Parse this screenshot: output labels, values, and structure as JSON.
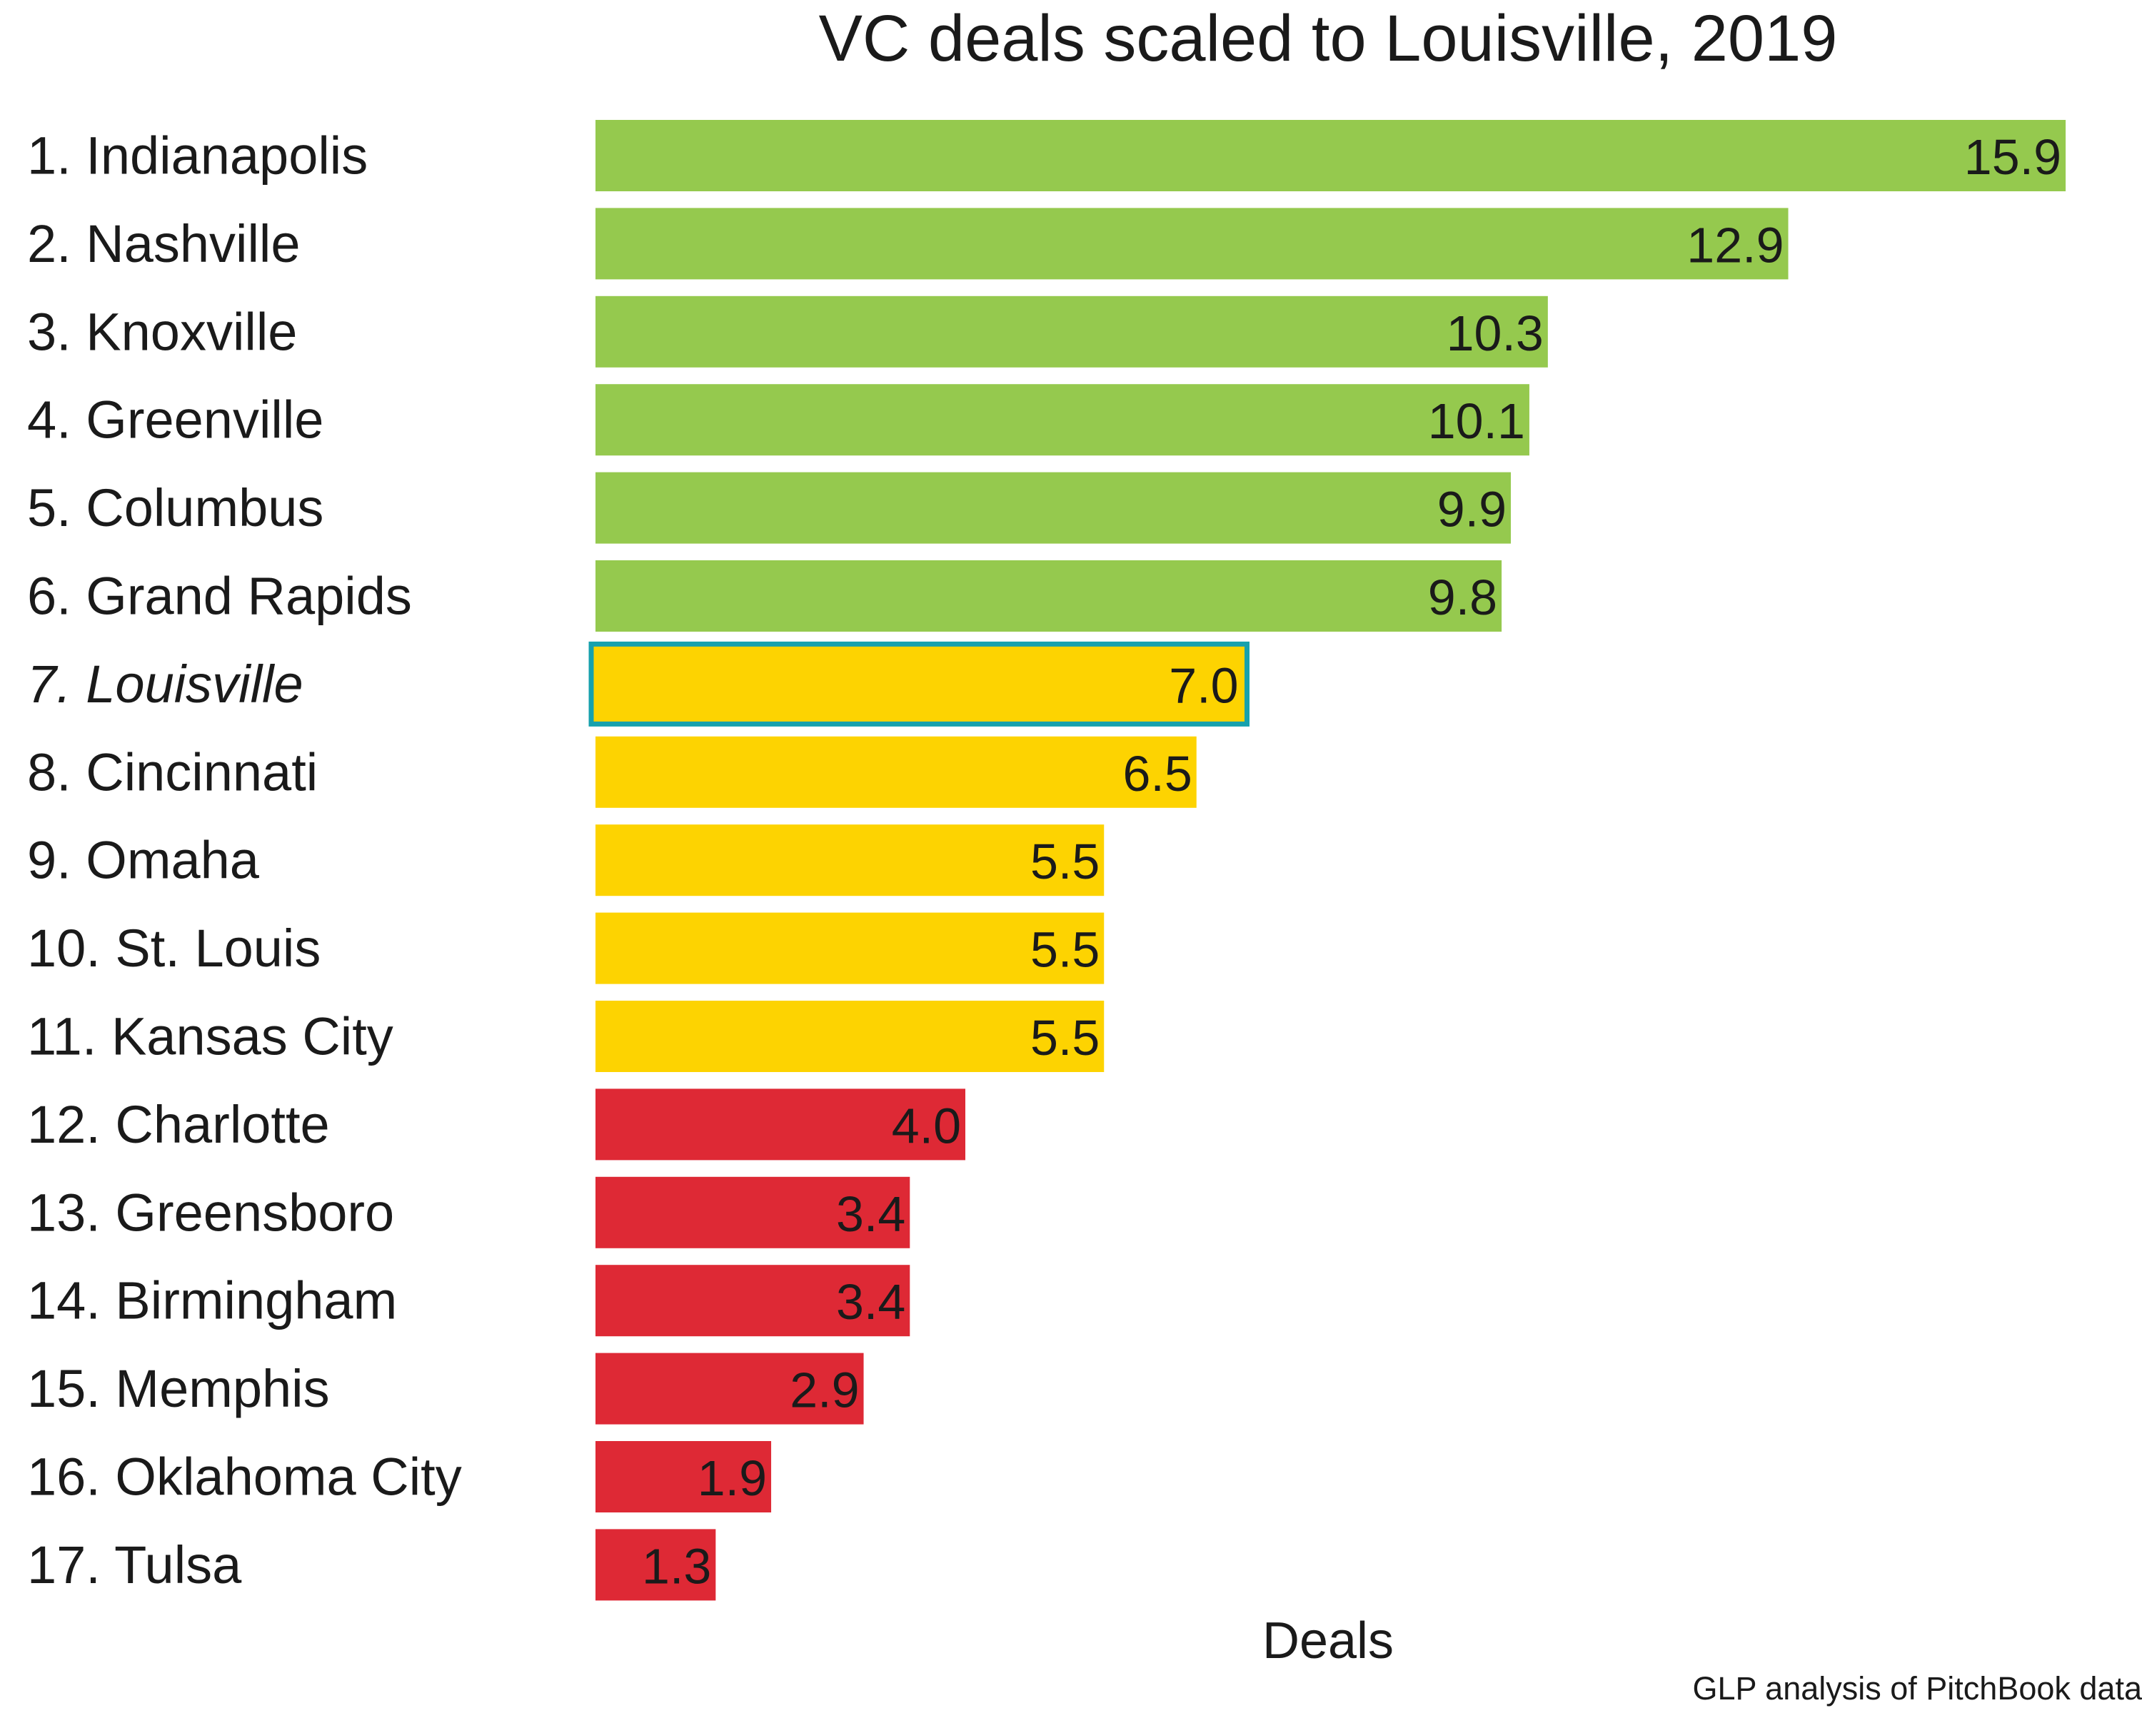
{
  "chart_data": {
    "type": "bar",
    "orientation": "horizontal",
    "title": "VC deals scaled to Louisville, 2019",
    "xlabel": "Deals",
    "source": "GLP analysis of PitchBook data",
    "xlim": [
      0,
      16
    ],
    "grid": false,
    "legend": "none",
    "categories": [
      "1. Indianapolis",
      "2. Nashville",
      "3. Knoxville",
      "4. Greenville",
      "5. Columbus",
      "6. Grand Rapids",
      "7. Louisville",
      "8. Cincinnati",
      "9. Omaha",
      "10. St. Louis",
      "11. Kansas City",
      "12. Charlotte",
      "13. Greensboro",
      "14. Birmingham",
      "15. Memphis",
      "16. Oklahoma City",
      "17. Tulsa"
    ],
    "values": [
      15.9,
      12.9,
      10.3,
      10.1,
      9.9,
      9.8,
      7.0,
      6.5,
      5.5,
      5.5,
      5.5,
      4.0,
      3.4,
      3.4,
      2.9,
      1.9,
      1.3
    ],
    "value_labels": [
      "15.9",
      "12.9",
      "10.3",
      "10.1",
      "9.9",
      "9.8",
      "7.0",
      "6.5",
      "5.5",
      "5.5",
      "5.5",
      "4.0",
      "3.4",
      "3.4",
      "2.9",
      "1.9",
      "1.3"
    ],
    "tiers": [
      "top",
      "top",
      "top",
      "top",
      "top",
      "top",
      "mid",
      "mid",
      "mid",
      "mid",
      "mid",
      "low",
      "low",
      "low",
      "low",
      "low",
      "low"
    ],
    "highlight": "7. Louisville",
    "colors": {
      "top": "#95c94e",
      "mid": "#fdd301",
      "low": "#de2935",
      "highlight_outline": "#17a1ad",
      "highlight_label": "#17a1ad"
    }
  }
}
